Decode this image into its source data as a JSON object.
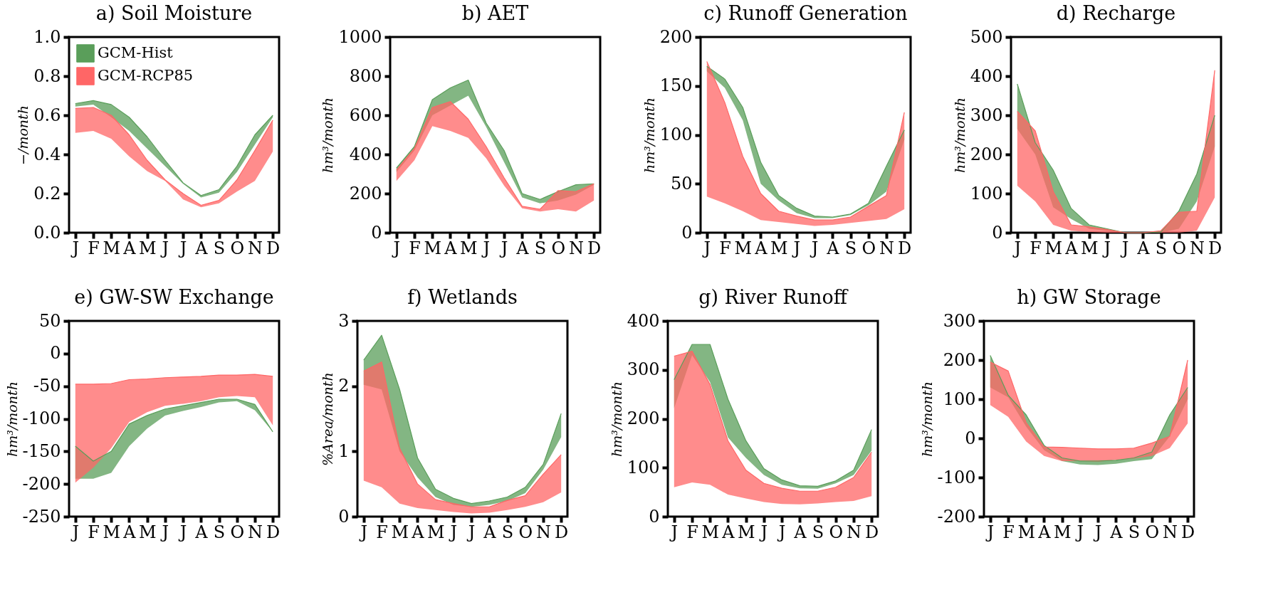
{
  "chart_data": [
    {
      "type": "line",
      "marker": "none",
      "title": "a) Soil Moisture",
      "ylabel": "−/month",
      "categories": [
        "J",
        "F",
        "M",
        "A",
        "M",
        "J",
        "J",
        "A",
        "S",
        "O",
        "N",
        "D"
      ],
      "ylim": [
        0,
        1
      ],
      "yticks": [
        {
          "value": 0,
          "label": "0.0"
        },
        {
          "value": 0.2,
          "label": "0.2"
        },
        {
          "value": 0.4,
          "label": "0.4"
        },
        {
          "value": 0.6,
          "label": "0.6"
        },
        {
          "value": 0.8,
          "label": "0.8"
        },
        {
          "value": 1,
          "label": "1.0"
        }
      ],
      "legend": "top left",
      "series": [
        {
          "name": "GCM-Hist",
          "color": "#5a9e5a",
          "values": [
            0.66,
            0.675,
            0.655,
            0.59,
            0.49,
            0.37,
            0.255,
            0.19,
            0.22,
            0.34,
            0.5,
            0.6
          ],
          "lower": [
            0.645,
            0.655,
            0.59,
            0.52,
            0.43,
            0.34,
            0.25,
            0.18,
            0.205,
            0.31,
            0.45,
            0.59
          ],
          "upper": [
            0.66,
            0.675,
            0.655,
            0.59,
            0.49,
            0.37,
            0.255,
            0.19,
            0.22,
            0.34,
            0.5,
            0.6
          ]
        },
        {
          "name": "GCM-RCP85",
          "color": "#ff6666",
          "values": [
            0.635,
            0.64,
            0.6,
            0.5,
            0.37,
            0.27,
            0.2,
            0.14,
            0.165,
            0.27,
            0.42,
            0.575
          ],
          "lower": [
            0.51,
            0.52,
            0.48,
            0.39,
            0.315,
            0.265,
            0.17,
            0.13,
            0.15,
            0.21,
            0.265,
            0.415
          ],
          "upper": [
            0.635,
            0.64,
            0.6,
            0.5,
            0.37,
            0.27,
            0.2,
            0.14,
            0.165,
            0.27,
            0.42,
            0.575
          ]
        }
      ]
    },
    {
      "type": "line",
      "marker": "none",
      "title": "b) AET",
      "ylabel": "hm³/month",
      "categories": [
        "J",
        "F",
        "M",
        "A",
        "M",
        "J",
        "J",
        "A",
        "S",
        "O",
        "N",
        "D"
      ],
      "ylim": [
        0,
        1000
      ],
      "yticks": [
        0,
        200,
        400,
        600,
        800,
        1000
      ],
      "series": [
        {
          "color": "#5a9e5a",
          "values": [
            330,
            440,
            680,
            740,
            780,
            560,
            420,
            200,
            170,
            210,
            245,
            250
          ],
          "lower": [
            310,
            420,
            600,
            650,
            700,
            540,
            360,
            180,
            150,
            165,
            195,
            245
          ],
          "upper": [
            330,
            440,
            680,
            740,
            780,
            560,
            420,
            200,
            170,
            210,
            245,
            250
          ]
        },
        {
          "color": "#ff6666",
          "values": [
            320,
            430,
            640,
            670,
            580,
            440,
            280,
            135,
            120,
            215,
            210,
            250
          ],
          "lower": [
            265,
            370,
            545,
            520,
            485,
            380,
            240,
            125,
            108,
            120,
            108,
            165
          ],
          "upper": [
            320,
            430,
            640,
            670,
            580,
            440,
            280,
            135,
            120,
            215,
            210,
            250
          ]
        }
      ]
    },
    {
      "type": "line",
      "marker": "none",
      "title": "c) Runoff Generation",
      "ylabel": "hm³/month",
      "categories": [
        "J",
        "F",
        "M",
        "A",
        "M",
        "J",
        "J",
        "A",
        "S",
        "O",
        "N",
        "D"
      ],
      "ylim": [
        0,
        200
      ],
      "yticks": [
        0,
        50,
        100,
        150,
        200
      ],
      "series": [
        {
          "color": "#5a9e5a",
          "values": [
            170,
            157,
            128,
            72,
            38,
            25,
            17,
            16,
            19,
            30,
            68,
            105
          ],
          "lower": [
            165,
            148,
            115,
            50,
            33,
            20,
            15,
            15,
            18,
            28,
            42,
            95
          ],
          "upper": [
            170,
            157,
            128,
            72,
            38,
            25,
            17,
            16,
            19,
            30,
            68,
            105
          ]
        },
        {
          "color": "#ff6666",
          "values": [
            175,
            133,
            78,
            40,
            22,
            17,
            13,
            13,
            16,
            27,
            38,
            123
          ],
          "lower": [
            37,
            30,
            22,
            13,
            11,
            9,
            7,
            8,
            10,
            12,
            14,
            24
          ],
          "upper": [
            175,
            133,
            78,
            40,
            22,
            17,
            13,
            13,
            16,
            27,
            38,
            123
          ]
        }
      ]
    },
    {
      "type": "line",
      "marker": "none",
      "title": "d) Recharge",
      "ylabel": "hm³/month",
      "categories": [
        "J",
        "F",
        "M",
        "A",
        "M",
        "J",
        "J",
        "A",
        "S",
        "O",
        "N",
        "D"
      ],
      "ylim": [
        0,
        500
      ],
      "yticks": [
        0,
        100,
        200,
        300,
        400,
        500
      ],
      "series": [
        {
          "color": "#5a9e5a",
          "values": [
            380,
            230,
            160,
            62,
            20,
            10,
            0,
            0,
            2,
            55,
            150,
            300
          ],
          "lower": [
            265,
            200,
            65,
            35,
            10,
            5,
            0,
            0,
            0,
            10,
            80,
            220
          ],
          "upper": [
            380,
            230,
            160,
            62,
            20,
            10,
            0,
            0,
            2,
            55,
            150,
            300
          ]
        },
        {
          "color": "#ff6666",
          "values": [
            310,
            260,
            105,
            20,
            15,
            8,
            0,
            0,
            5,
            52,
            55,
            415
          ],
          "lower": [
            120,
            80,
            20,
            5,
            2,
            0,
            0,
            0,
            0,
            0,
            5,
            90
          ],
          "upper": [
            310,
            260,
            105,
            20,
            15,
            8,
            0,
            0,
            5,
            52,
            55,
            415
          ]
        }
      ]
    },
    {
      "type": "line",
      "marker": "none",
      "title": "e) GW-SW Exchange",
      "ylabel": "hm³/month",
      "categories": [
        "J",
        "F",
        "M",
        "A",
        "M",
        "J",
        "J",
        "A",
        "S",
        "O",
        "N",
        "D"
      ],
      "ylim": [
        -250,
        50
      ],
      "yticks": [
        -250,
        -200,
        -150,
        -100,
        -50,
        0,
        50
      ],
      "series": [
        {
          "color": "#5a9e5a",
          "values": [
            -142,
            -165,
            -150,
            -108,
            -95,
            -85,
            -80,
            -75,
            -70,
            -70,
            -78,
            -120
          ],
          "lower": [
            -192,
            -192,
            -183,
            -142,
            -115,
            -95,
            -88,
            -82,
            -75,
            -73,
            -87,
            -120
          ],
          "upper": [
            -142,
            -165,
            -150,
            -108,
            -95,
            -85,
            -80,
            -75,
            -70,
            -70,
            -78,
            -120
          ]
        },
        {
          "color": "#ff6666",
          "values": [
            -47,
            -47,
            -46,
            -40,
            -39,
            -37,
            -36,
            -35,
            -33,
            -33,
            -32,
            -35
          ],
          "lower": [
            -198,
            -175,
            -145,
            -105,
            -90,
            -80,
            -77,
            -73,
            -67,
            -65,
            -67,
            -110
          ],
          "upper": [
            -47,
            -47,
            -46,
            -40,
            -39,
            -37,
            -36,
            -35,
            -33,
            -33,
            -32,
            -35
          ]
        }
      ]
    },
    {
      "type": "line",
      "marker": "none",
      "title": "f) Wetlands",
      "ylabel": "%Area/month",
      "categories": [
        "J",
        "F",
        "M",
        "A",
        "M",
        "J",
        "J",
        "A",
        "S",
        "O",
        "N",
        "D"
      ],
      "ylim": [
        0,
        3
      ],
      "yticks": [
        0,
        1,
        2,
        3
      ],
      "series": [
        {
          "color": "#5a9e5a",
          "values": [
            2.4,
            2.78,
            1.95,
            0.9,
            0.42,
            0.28,
            0.2,
            0.24,
            0.3,
            0.45,
            0.8,
            1.58
          ],
          "lower": [
            2.02,
            1.95,
            1.0,
            0.6,
            0.3,
            0.18,
            0.15,
            0.18,
            0.24,
            0.36,
            0.72,
            1.22
          ],
          "upper": [
            2.4,
            2.78,
            1.95,
            0.9,
            0.42,
            0.28,
            0.2,
            0.24,
            0.3,
            0.45,
            0.8,
            1.58
          ]
        },
        {
          "color": "#ff6666",
          "values": [
            2.23,
            2.37,
            1.05,
            0.5,
            0.26,
            0.2,
            0.15,
            0.15,
            0.25,
            0.32,
            0.65,
            0.95
          ],
          "lower": [
            0.55,
            0.45,
            0.2,
            0.13,
            0.1,
            0.07,
            0.05,
            0.06,
            0.1,
            0.15,
            0.22,
            0.37
          ],
          "upper": [
            2.23,
            2.37,
            1.05,
            0.5,
            0.26,
            0.2,
            0.15,
            0.15,
            0.25,
            0.32,
            0.65,
            0.95
          ]
        }
      ]
    },
    {
      "type": "line",
      "marker": "none",
      "title": "g) River Runoff",
      "ylabel": "hm³/month",
      "categories": [
        "J",
        "F",
        "M",
        "A",
        "M",
        "J",
        "J",
        "A",
        "S",
        "O",
        "N",
        "D"
      ],
      "ylim": [
        0,
        400
      ],
      "yticks": [
        0,
        100,
        200,
        300,
        400
      ],
      "series": [
        {
          "color": "#5a9e5a",
          "values": [
            280,
            352,
            352,
            240,
            155,
            98,
            75,
            63,
            62,
            73,
            95,
            178
          ],
          "lower": [
            222,
            330,
            275,
            162,
            120,
            85,
            65,
            58,
            57,
            68,
            85,
            135
          ],
          "upper": [
            280,
            352,
            352,
            240,
            155,
            98,
            75,
            63,
            62,
            73,
            95,
            178
          ]
        },
        {
          "color": "#ff6666",
          "values": [
            328,
            338,
            270,
            155,
            95,
            68,
            58,
            52,
            52,
            60,
            80,
            132
          ],
          "lower": [
            60,
            70,
            65,
            45,
            37,
            30,
            26,
            25,
            27,
            30,
            32,
            42
          ],
          "upper": [
            328,
            338,
            270,
            155,
            95,
            68,
            58,
            52,
            52,
            60,
            80,
            132
          ]
        }
      ]
    },
    {
      "type": "line",
      "marker": "none",
      "title": "h) GW Storage",
      "ylabel": "hm³/month",
      "categories": [
        "J",
        "F",
        "M",
        "A",
        "M",
        "J",
        "J",
        "A",
        "S",
        "O",
        "N",
        "D"
      ],
      "ylim": [
        -200,
        300
      ],
      "yticks": [
        -200,
        -100,
        0,
        100,
        200,
        300
      ],
      "series": [
        {
          "color": "#5a9e5a",
          "values": [
            212,
            110,
            60,
            -18,
            -50,
            -58,
            -58,
            -56,
            -50,
            -35,
            60,
            130
          ],
          "lower": [
            130,
            105,
            30,
            -30,
            -58,
            -67,
            -68,
            -65,
            -58,
            -53,
            5,
            100
          ],
          "upper": [
            212,
            110,
            60,
            -18,
            -50,
            -58,
            -58,
            -56,
            -50,
            -35,
            60,
            130
          ]
        },
        {
          "color": "#ff6666",
          "values": [
            195,
            172,
            40,
            -22,
            -23,
            -25,
            -27,
            -27,
            -25,
            -12,
            5,
            200
          ],
          "lower": [
            85,
            55,
            -8,
            -45,
            -58,
            -58,
            -60,
            -55,
            -52,
            -45,
            -25,
            38
          ],
          "upper": [
            195,
            172,
            40,
            -22,
            -23,
            -25,
            -27,
            -27,
            -25,
            -12,
            5,
            200
          ]
        }
      ]
    }
  ]
}
